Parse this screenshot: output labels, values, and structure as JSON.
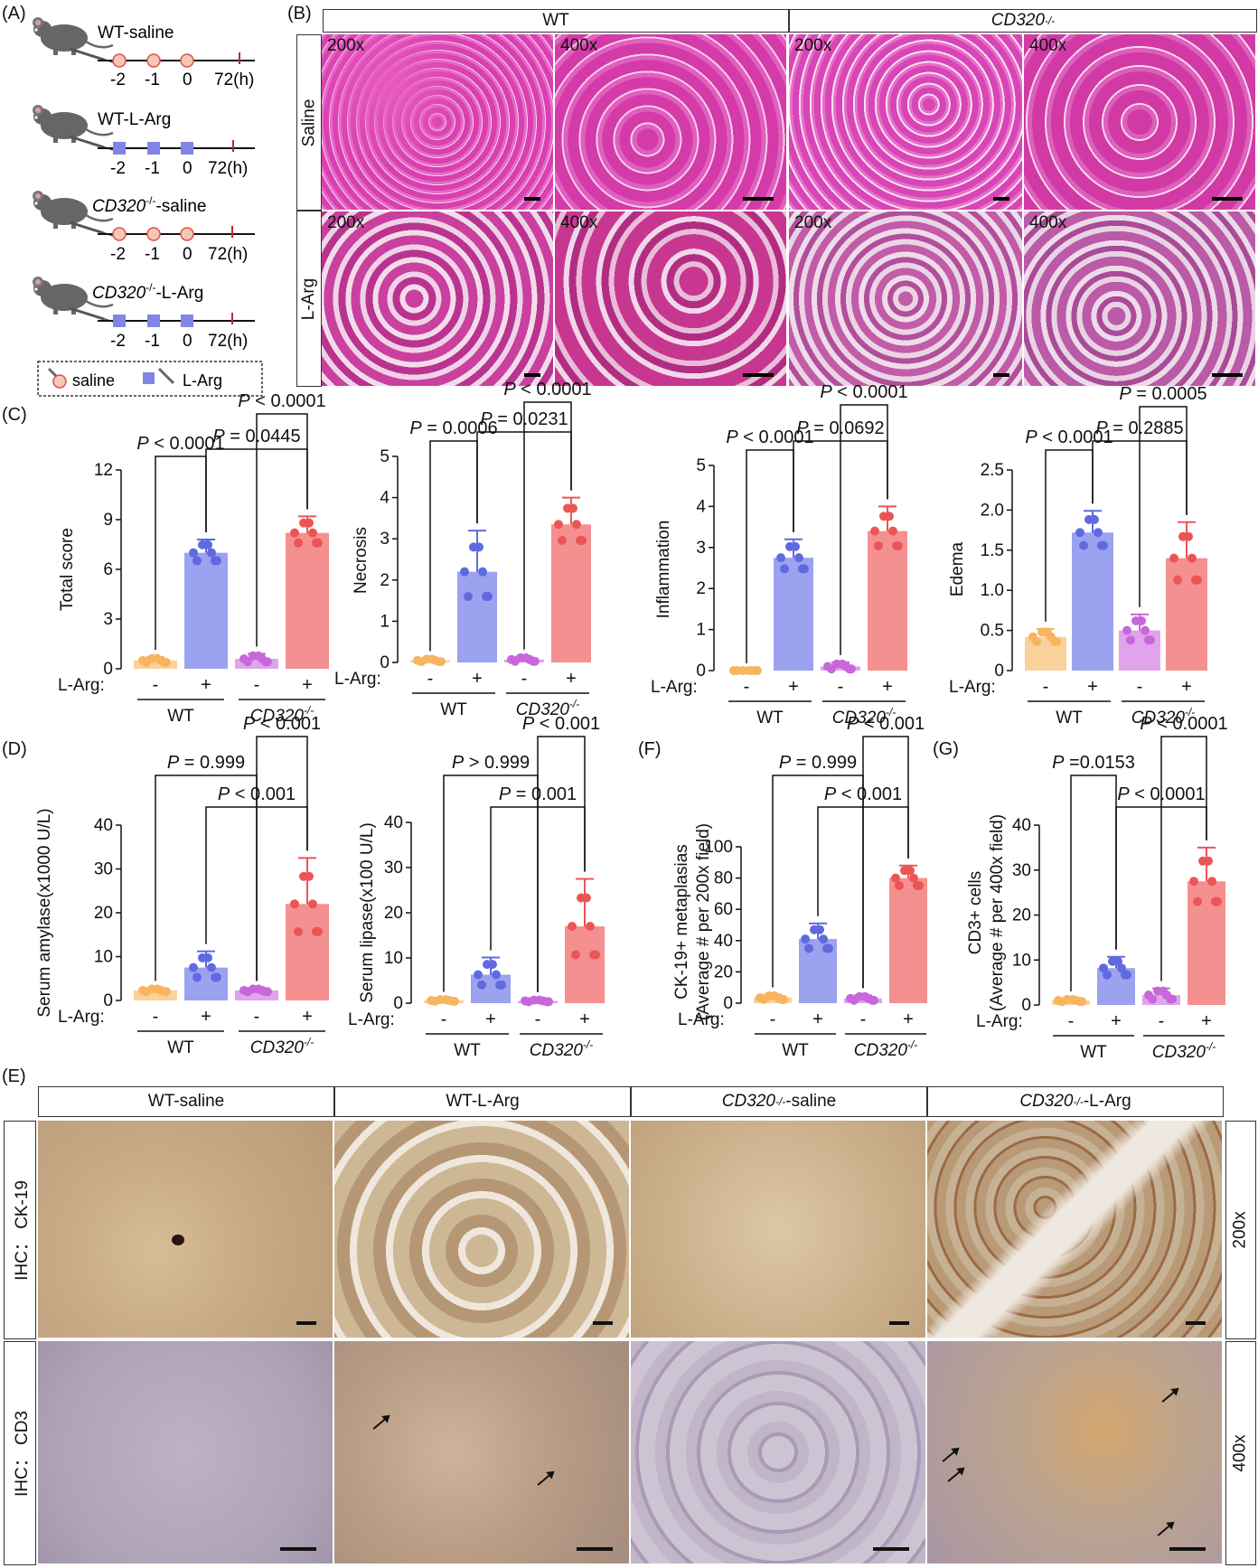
{
  "panel_labels": {
    "A": "(A)",
    "B": "(B)",
    "C": "(C)",
    "D": "(D)",
    "E": "(E)",
    "F": "(F)",
    "G": "(G)"
  },
  "panel_a": {
    "groups": [
      {
        "name": "WT-saline",
        "marker": "saline"
      },
      {
        "name": "WT-L-Arg",
        "marker": "larg"
      },
      {
        "name_italic": "CD320",
        "name_sup": "-/-",
        "name_suffix": "-saline",
        "marker": "saline"
      },
      {
        "name_italic": "CD320",
        "name_sup": "-/-",
        "name_suffix": "-L-Arg",
        "marker": "larg"
      }
    ],
    "ticks": [
      "-2",
      "-1",
      "0",
      "72(h)"
    ],
    "legend": {
      "saline": "saline",
      "larg": "L-Arg"
    },
    "colors": {
      "saline_fill": "#f6c6b6",
      "saline_stroke": "#d9544a",
      "larg": "#7f86e6",
      "endmark": "#c0282d",
      "mouse": "#666666"
    }
  },
  "panel_b": {
    "col_headers": [
      {
        "text": "WT"
      },
      {
        "italic": "CD320",
        "sup": "-/-"
      }
    ],
    "row_labels": [
      "Saline",
      "L-Arg"
    ],
    "mags": [
      "200x",
      "400x",
      "200x",
      "400x"
    ]
  },
  "panel_e": {
    "col_headers": [
      {
        "text": "WT-saline"
      },
      {
        "text": "WT-L-Arg"
      },
      {
        "italic": "CD320",
        "sup": "-/-",
        "suffix": "-saline"
      },
      {
        "italic": "CD320",
        "sup": "-/-",
        "suffix": "-L-Arg"
      }
    ],
    "row_labels": [
      "IHC： CK-19",
      "IHC： CD3"
    ],
    "mag_labels": [
      "200x",
      "400x"
    ]
  },
  "x_labels": {
    "treatment": "L-Arg",
    "minus": "-",
    "plus": "+",
    "wt": "WT",
    "ko_italic": "CD320",
    "ko_sup": "-/-"
  },
  "colors": {
    "wt_saline": "#f8c98a",
    "wt_larg": "#8a92ec",
    "ko_saline": "#d994e8",
    "ko_larg": "#f27c7c",
    "wt_saline_dot": "#f7b560",
    "wt_larg_dot": "#5f6ae0",
    "ko_saline_dot": "#c767db",
    "ko_larg_dot": "#ec5555"
  },
  "chart_data": [
    {
      "type": "bar",
      "panel": "C",
      "ylabel": "Total score",
      "ylim": [
        0,
        12
      ],
      "yticks": [
        "0",
        "3",
        "6",
        "9",
        "12"
      ],
      "categories": [
        "WT -",
        "WT +",
        "CD320-/- -",
        "CD320-/- +"
      ],
      "values": [
        0.5,
        7.0,
        0.6,
        8.2
      ],
      "errors": [
        0.2,
        0.8,
        0.3,
        1.0
      ],
      "pvalues": [
        {
          "text": "P < 0.0001",
          "pair": [
            0,
            1
          ]
        },
        {
          "text": "P < 0.0001",
          "pair": [
            2,
            3
          ]
        },
        {
          "text": "P = 0.0445",
          "pair": [
            1,
            3
          ]
        }
      ]
    },
    {
      "type": "bar",
      "panel": "C",
      "ylabel": "Necrosis",
      "ylim": [
        0,
        5
      ],
      "yticks": [
        "0",
        "1",
        "2",
        "3",
        "4",
        "5"
      ],
      "categories": [
        "WT -",
        "WT +",
        "CD320-/- -",
        "CD320-/- +"
      ],
      "values": [
        0.05,
        2.2,
        0.07,
        3.35
      ],
      "errors": [
        0.05,
        1.0,
        0.07,
        0.65
      ],
      "pvalues": [
        {
          "text": "P = 0.0006",
          "pair": [
            0,
            1
          ]
        },
        {
          "text": "P < 0.0001",
          "pair": [
            2,
            3
          ]
        },
        {
          "text": "P = 0.0231",
          "pair": [
            1,
            3
          ]
        }
      ]
    },
    {
      "type": "bar",
      "panel": "C",
      "ylabel": "Inflammation",
      "ylim": [
        0,
        5
      ],
      "yticks": [
        "0",
        "1",
        "2",
        "3",
        "4",
        "5"
      ],
      "categories": [
        "WT -",
        "WT +",
        "CD320-/- -",
        "CD320-/- +"
      ],
      "values": [
        0.0,
        2.75,
        0.1,
        3.4
      ],
      "errors": [
        0.0,
        0.45,
        0.1,
        0.6
      ],
      "pvalues": [
        {
          "text": "P < 0.0001",
          "pair": [
            0,
            1
          ]
        },
        {
          "text": "P < 0.0001",
          "pair": [
            2,
            3
          ]
        },
        {
          "text": "P = 0.0692",
          "pair": [
            1,
            3
          ]
        }
      ]
    },
    {
      "type": "bar",
      "panel": "C",
      "ylabel": "Edema",
      "ylim": [
        0,
        2.5
      ],
      "yticks": [
        "0",
        "0.5",
        "1.0",
        "1.5",
        "2.0",
        "2.5"
      ],
      "categories": [
        "WT -",
        "WT +",
        "CD320-/- -",
        "CD320-/- +"
      ],
      "values": [
        0.42,
        1.72,
        0.5,
        1.4
      ],
      "errors": [
        0.1,
        0.27,
        0.2,
        0.45
      ],
      "pvalues": [
        {
          "text": "P < 0.0001",
          "pair": [
            0,
            1
          ]
        },
        {
          "text": "P = 0.0005",
          "pair": [
            2,
            3
          ]
        },
        {
          "text": "P = 0.2885",
          "pair": [
            1,
            3
          ]
        }
      ]
    },
    {
      "type": "bar",
      "panel": "D",
      "ylabel": "Serum amylase(x1000 U/L)",
      "ylim": [
        0,
        40
      ],
      "yticks": [
        "0",
        "10",
        "20",
        "30",
        "40"
      ],
      "categories": [
        "WT -",
        "WT +",
        "CD320-/- -",
        "CD320-/- +"
      ],
      "values": [
        2.3,
        7.5,
        2.3,
        22.0
      ],
      "errors": [
        0.5,
        3.7,
        0.5,
        10.5
      ],
      "pvalues": [
        {
          "text": "P = 0.999",
          "pair": [
            0,
            2
          ]
        },
        {
          "text": "P < 0.001",
          "pair": [
            2,
            3
          ]
        },
        {
          "text": "P < 0.001",
          "pair": [
            1,
            3
          ]
        }
      ]
    },
    {
      "type": "bar",
      "panel": "D",
      "ylabel": "Serum lipase(x100 U/L)",
      "ylim": [
        0,
        40
      ],
      "yticks": [
        "0",
        "10",
        "20",
        "30",
        "40"
      ],
      "categories": [
        "WT -",
        "WT +",
        "CD320-/- -",
        "CD320-/- +"
      ],
      "values": [
        0.6,
        6.3,
        0.5,
        17.0
      ],
      "errors": [
        0.3,
        3.8,
        0.3,
        10.5
      ],
      "pvalues": [
        {
          "text": "P > 0.999",
          "pair": [
            0,
            2
          ]
        },
        {
          "text": "P < 0.001",
          "pair": [
            2,
            3
          ]
        },
        {
          "text": "P = 0.001",
          "pair": [
            1,
            3
          ]
        }
      ]
    },
    {
      "type": "bar",
      "panel": "F",
      "ylabel": "CK-19+ metaplasias (Average # per 200x field)",
      "ylim": [
        0,
        100
      ],
      "yticks": [
        "0",
        "20",
        "40",
        "60",
        "80",
        "100"
      ],
      "categories": [
        "WT -",
        "WT +",
        "CD320-/- -",
        "CD320-/- +"
      ],
      "values": [
        3.5,
        41.0,
        3.0,
        80.0
      ],
      "errors": [
        2.0,
        10.0,
        2.0,
        8.0
      ],
      "pvalues": [
        {
          "text": "P = 0.999",
          "pair": [
            0,
            2
          ]
        },
        {
          "text": "P < 0.001",
          "pair": [
            2,
            3
          ]
        },
        {
          "text": "P < 0.001",
          "pair": [
            1,
            3
          ]
        }
      ]
    },
    {
      "type": "bar",
      "panel": "G",
      "ylabel": "CD3+ cells (Average # per 400x field)",
      "ylim": [
        0,
        40
      ],
      "yticks": [
        "0",
        "10",
        "20",
        "30",
        "40"
      ],
      "categories": [
        "WT -",
        "WT +",
        "CD320-/- -",
        "CD320-/- +"
      ],
      "values": [
        1.0,
        8.2,
        2.2,
        27.5
      ],
      "errors": [
        0.4,
        2.5,
        1.5,
        7.5
      ],
      "pvalues": [
        {
          "text": "P =0.0153",
          "pair": [
            0,
            1
          ]
        },
        {
          "text": "P < 0.0001",
          "pair": [
            2,
            3
          ]
        },
        {
          "text": "P < 0.0001",
          "pair": [
            1,
            3
          ]
        }
      ]
    }
  ]
}
